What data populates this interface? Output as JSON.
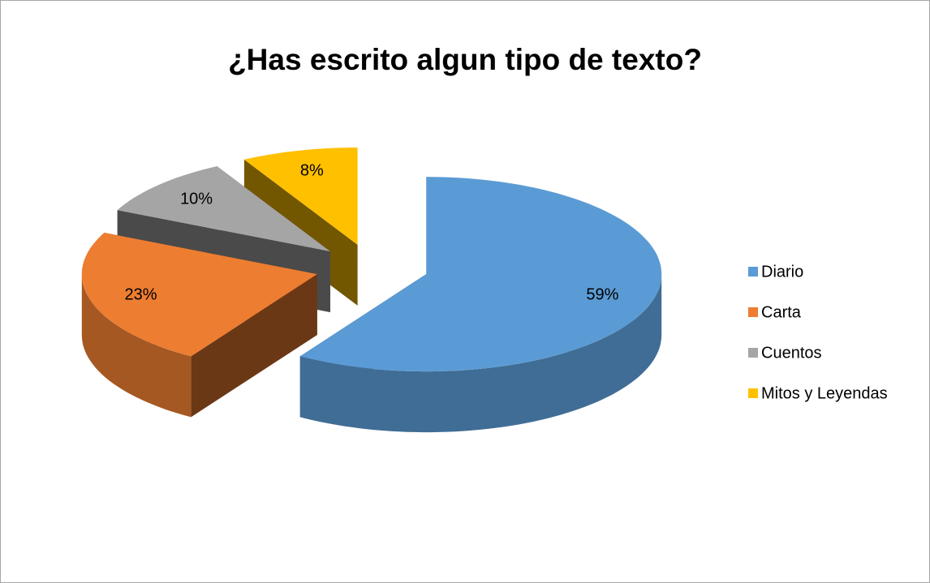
{
  "chart_data": {
    "type": "pie",
    "title": "¿Has escrito algun tipo de texto?",
    "categories": [
      "Diario",
      "Carta",
      "Cuentos",
      "Mitos y Leyendas"
    ],
    "values": [
      59,
      23,
      10,
      8
    ],
    "value_labels": [
      "59%",
      "23%",
      "10%",
      "8%"
    ],
    "colors": [
      "#5b9bd5",
      "#ed7d31",
      "#a5a5a5",
      "#ffc000"
    ],
    "legend": "right"
  }
}
